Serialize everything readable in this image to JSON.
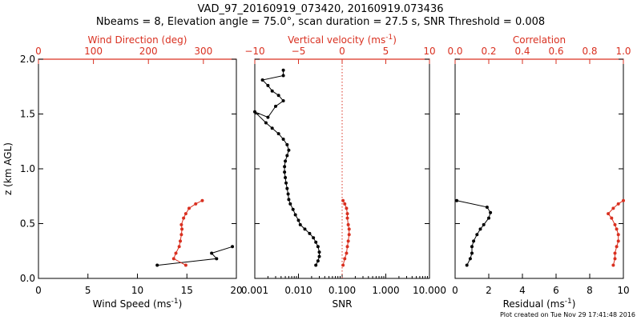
{
  "header": {
    "title_line1": "VAD_97_20160919_073420, 20160919.073436",
    "title_line2": "Nbeams = 8, Elevation angle = 75.0°, scan duration = 27.5 s, SNR Threshold = 0.008"
  },
  "footer": {
    "created": "Plot created on Tue Nov 29 17:41:48 2016"
  },
  "colors": {
    "black": "#000000",
    "red": "#d93020"
  },
  "chart_data": [
    {
      "type": "line",
      "panel": "wind",
      "ylabel": "z (km AGL)",
      "ylim": [
        0,
        2
      ],
      "yticks": [
        "0.0",
        "0.5",
        "1.0",
        "1.5",
        "2.0"
      ],
      "bottom_axis": {
        "label": "Wind Speed (ms",
        "label_sup": "-1",
        "label_end": ")",
        "range": [
          0,
          20
        ],
        "ticks": [
          "0",
          "5",
          "10",
          "15",
          "20"
        ]
      },
      "top_axis": {
        "label": "Wind Direction (deg)",
        "range": [
          0,
          360
        ],
        "ticks": [
          "0",
          "100",
          "200",
          "300"
        ]
      },
      "series": [
        {
          "axis": "bottom",
          "color": "#000000",
          "x": [
            12.0,
            18.0,
            17.5,
            19.6
          ],
          "y": [
            0.12,
            0.18,
            0.23,
            0.29
          ]
        },
        {
          "axis": "top",
          "color": "#d93020",
          "x": [
            268,
            246,
            250,
            256,
            258,
            260,
            261,
            260,
            264,
            268,
            274,
            286,
            298
          ],
          "y": [
            0.12,
            0.18,
            0.23,
            0.29,
            0.34,
            0.4,
            0.45,
            0.49,
            0.55,
            0.59,
            0.64,
            0.68,
            0.71
          ]
        }
      ]
    },
    {
      "type": "line",
      "panel": "snr",
      "ylim": [
        0,
        2
      ],
      "bottom_axis": {
        "label": "SNR",
        "scale": "log",
        "range": [
          0.001,
          10
        ],
        "ticks": [
          "0.001",
          "0.010",
          "0.100",
          "1.000",
          "10.000"
        ]
      },
      "top_axis": {
        "label": "Vertical velocity (ms",
        "label_sup": "-1",
        "label_end": ")",
        "range": [
          -10,
          10
        ],
        "ticks": [
          "−10",
          "−5",
          "0",
          "5",
          "10"
        ]
      },
      "reference_line": {
        "axis": "top",
        "value": 0,
        "style": "dotted",
        "color": "#d93020"
      },
      "series": [
        {
          "axis": "bottom",
          "color": "#000000",
          "x": [
            0.025,
            0.028,
            0.03,
            0.03,
            0.028,
            0.025,
            0.022,
            0.018,
            0.014,
            0.011,
            0.01,
            0.0085,
            0.0075,
            0.0065,
            0.006,
            0.0058,
            0.0055,
            0.0052,
            0.005,
            0.0048,
            0.0048,
            0.005,
            0.0055,
            0.006,
            0.0055,
            0.0045,
            0.0035,
            0.0025,
            0.0018,
            0.001,
            0.002,
            0.003,
            0.0045,
            0.0035,
            0.0025,
            0.002,
            0.0015,
            0.0045,
            0.0045
          ],
          "y": [
            0.12,
            0.16,
            0.2,
            0.24,
            0.29,
            0.33,
            0.37,
            0.41,
            0.45,
            0.49,
            0.53,
            0.58,
            0.63,
            0.68,
            0.72,
            0.77,
            0.82,
            0.87,
            0.92,
            0.97,
            1.02,
            1.07,
            1.12,
            1.17,
            1.22,
            1.27,
            1.32,
            1.37,
            1.42,
            1.52,
            1.47,
            1.57,
            1.62,
            1.67,
            1.71,
            1.76,
            1.81,
            1.85,
            1.9
          ]
        },
        {
          "axis": "top",
          "color": "#d93020",
          "x": [
            0.1,
            0.3,
            0.5,
            0.6,
            0.7,
            0.8,
            0.8,
            0.7,
            0.6,
            0.6,
            0.5,
            0.3,
            0.1
          ],
          "y": [
            0.12,
            0.18,
            0.23,
            0.29,
            0.34,
            0.4,
            0.45,
            0.49,
            0.55,
            0.59,
            0.64,
            0.68,
            0.71
          ]
        }
      ]
    },
    {
      "type": "line",
      "panel": "residual",
      "ylim": [
        0,
        2
      ],
      "bottom_axis": {
        "label": "Residual (ms",
        "label_sup": "-1",
        "label_end": ")",
        "range": [
          0,
          10
        ],
        "ticks": [
          "0",
          "2",
          "4",
          "6",
          "8",
          "10"
        ]
      },
      "top_axis": {
        "label": "Correlation",
        "range": [
          0,
          1
        ],
        "ticks": [
          "0.0",
          "0.2",
          "0.4",
          "0.6",
          "0.8",
          "1.0"
        ]
      },
      "series": [
        {
          "axis": "bottom",
          "color": "#000000",
          "x": [
            0.7,
            0.9,
            1.0,
            1.0,
            1.1,
            1.3,
            1.5,
            1.7,
            2.0,
            2.1,
            1.9,
            0.1
          ],
          "y": [
            0.12,
            0.18,
            0.23,
            0.29,
            0.34,
            0.4,
            0.45,
            0.49,
            0.55,
            0.6,
            0.65,
            0.71
          ]
        },
        {
          "axis": "top",
          "color": "#d93020",
          "x": [
            0.94,
            0.95,
            0.95,
            0.96,
            0.97,
            0.97,
            0.96,
            0.95,
            0.93,
            0.91,
            0.94,
            0.97,
            1.0
          ],
          "y": [
            0.12,
            0.18,
            0.23,
            0.29,
            0.34,
            0.4,
            0.45,
            0.49,
            0.55,
            0.59,
            0.64,
            0.68,
            0.71
          ]
        }
      ]
    }
  ]
}
